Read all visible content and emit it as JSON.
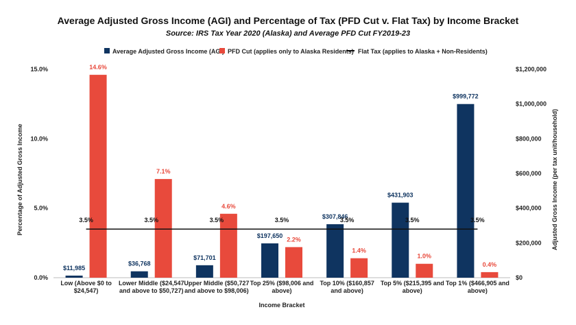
{
  "chart_data": {
    "type": "bar",
    "title": "Average Adjusted Gross Income (AGI) and Percentage of Tax (PFD Cut v. Flat Tax) by Income Bracket",
    "subtitle": "Source: IRS Tax Year 2020 (Alaska) and Average PFD Cut FY2019-23",
    "xlabel": "Income Bracket",
    "ylabel_left": "Percentage of Adjusted Gross Income",
    "ylabel_right": "Adjusted Gross Income (per tax unit/household)",
    "categories": [
      [
        "Low (Above $0 to",
        "$24,547)"
      ],
      [
        "Lower Middle ($24,547",
        "and above to $50,727)"
      ],
      [
        "Upper Middle ($50,727",
        "and above to $98,006)"
      ],
      [
        "Top 25% ($98,006 and",
        "above)"
      ],
      [
        "Top 10% ($160,857",
        "and above)"
      ],
      [
        "Top 5% ($215,395 and",
        "above)"
      ],
      [
        "Top 1% ($466,905 and",
        "above)"
      ]
    ],
    "left_ylim": [
      0,
      15
    ],
    "left_ticks": [
      "0.0%",
      "5.0%",
      "10.0%",
      "15.0%"
    ],
    "right_ylim": [
      0,
      1200000
    ],
    "right_ticks": [
      "$0",
      "$200,000",
      "$400,000",
      "$600,000",
      "$800,000",
      "$1,000,000",
      "$1,200,000"
    ],
    "legend_position": "top",
    "series": [
      {
        "name": "Average Adjusted Gross Income (AGI)",
        "axis": "right",
        "color": "#0f3460",
        "values": [
          11985,
          36768,
          71701,
          197650,
          307846,
          431903,
          999772
        ],
        "labels": [
          "$11,985",
          "$36,768",
          "$71,701",
          "$197,650",
          "$307,846",
          "$431,903",
          "$999,772"
        ]
      },
      {
        "name": "PFD Cut (applies only to Alaska Residents)",
        "axis": "left",
        "color": "#e84a3c",
        "values": [
          14.6,
          7.1,
          4.6,
          2.2,
          1.4,
          1.0,
          0.4
        ],
        "labels": [
          "14.6%",
          "7.1%",
          "4.6%",
          "2.2%",
          "1.4%",
          "1.0%",
          "0.4%"
        ]
      },
      {
        "name": "Flat Tax (applies to Alaska + Non-Residents)",
        "axis": "left",
        "type": "line",
        "color": "#111111",
        "values": [
          3.5,
          3.5,
          3.5,
          3.5,
          3.5,
          3.5,
          3.5
        ],
        "labels": [
          "3.5%",
          "3.5%",
          "3.5%",
          "3.5%",
          "3.5%",
          "3.5%",
          "3.5%"
        ]
      }
    ]
  }
}
